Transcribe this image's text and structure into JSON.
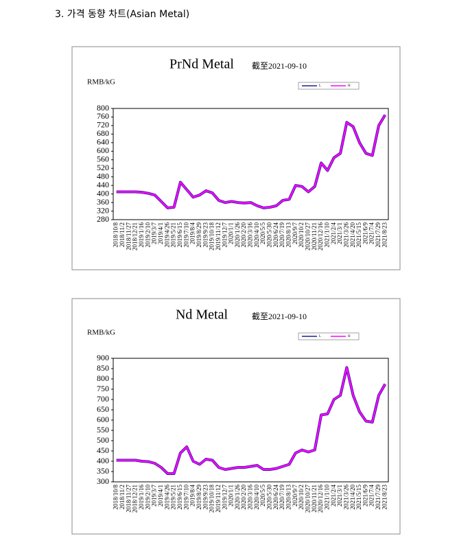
{
  "heading": "3. 가격 동향 차트(Asian Metal)",
  "chart_data": [
    {
      "type": "line",
      "title": "PrNd Metal",
      "subtitle": "截至2021-09-10",
      "y_label": "RMB/kG",
      "categories": [
        "2018/10/8",
        "2018/11/2",
        "2018/11/27",
        "2018/12/21",
        "2019/1/16",
        "2019/2/10",
        "2019/3/7",
        "2019/4/1",
        "2019/4/26",
        "2019/5/21",
        "2019/6/15",
        "2019/7/10",
        "2019/8/4",
        "2019/8/29",
        "2019/9/23",
        "2019/10/18",
        "2019/11/12",
        "2019/12/7",
        "2020/1/1",
        "2020/1/26",
        "2020/2/20",
        "2020/3/16",
        "2020/4/10",
        "2020/5/5",
        "2020/5/30",
        "2020/6/24",
        "2020/7/19",
        "2020/8/13",
        "2020/9/7",
        "2020/10/2",
        "2020/10/27",
        "2020/11/21",
        "2020/12/16",
        "2021/1/10",
        "2021/2/4",
        "2021/3/1",
        "2021/3/26",
        "2021/4/20",
        "2021/5/15",
        "2021/6/9",
        "2021/7/4",
        "2021/7/29",
        "2021/8/23"
      ],
      "series": [
        {
          "name": "L",
          "color": "#1f1f8f",
          "values": [
            410,
            410,
            410,
            410,
            408,
            403,
            395,
            365,
            335,
            338,
            455,
            420,
            385,
            395,
            415,
            405,
            370,
            360,
            365,
            360,
            358,
            360,
            345,
            335,
            338,
            345,
            370,
            375,
            440,
            435,
            410,
            435,
            545,
            510,
            570,
            590,
            735,
            715,
            640,
            590,
            580,
            720,
            770
          ]
        },
        {
          "name": "H",
          "color": "#ff00ff",
          "values": [
            410,
            410,
            410,
            410,
            408,
            403,
            395,
            365,
            335,
            338,
            455,
            420,
            385,
            395,
            415,
            405,
            370,
            360,
            365,
            360,
            358,
            360,
            345,
            335,
            338,
            345,
            370,
            375,
            440,
            435,
            410,
            435,
            545,
            510,
            570,
            590,
            735,
            715,
            640,
            590,
            580,
            720,
            770
          ]
        }
      ],
      "ylim": [
        280,
        800
      ],
      "yticks": [
        280,
        320,
        360,
        400,
        440,
        480,
        520,
        560,
        600,
        640,
        680,
        720,
        760,
        800
      ]
    },
    {
      "type": "line",
      "title": "Nd Metal",
      "subtitle": "截至2021-09-10",
      "y_label": "RMB/kG",
      "categories": [
        "2018/10/8",
        "2018/11/2",
        "2018/11/27",
        "2018/12/21",
        "2019/1/16",
        "2019/2/10",
        "2019/3/7",
        "2019/4/1",
        "2019/4/26",
        "2019/5/21",
        "2019/6/15",
        "2019/7/10",
        "2019/8/4",
        "2019/8/29",
        "2019/9/23",
        "2019/10/18",
        "2019/11/12",
        "2019/12/7",
        "2020/1/1",
        "2020/1/26",
        "2020/2/20",
        "2020/3/16",
        "2020/4/10",
        "2020/5/5",
        "2020/5/30",
        "2020/6/24",
        "2020/7/19",
        "2020/8/13",
        "2020/9/7",
        "2020/10/2",
        "2020/10/27",
        "2020/11/21",
        "2020/12/16",
        "2021/1/10",
        "2021/2/4",
        "2021/3/1",
        "2021/3/26",
        "2021/4/20",
        "2021/5/15",
        "2021/6/9",
        "2021/7/4",
        "2021/7/29",
        "2021/8/23"
      ],
      "series": [
        {
          "name": "L",
          "color": "#1f1f8f",
          "values": [
            405,
            405,
            405,
            405,
            400,
            398,
            390,
            370,
            340,
            340,
            440,
            470,
            400,
            385,
            410,
            405,
            370,
            360,
            365,
            370,
            370,
            375,
            380,
            360,
            360,
            365,
            375,
            385,
            440,
            455,
            445,
            455,
            625,
            630,
            700,
            720,
            855,
            720,
            640,
            595,
            590,
            720,
            775
          ]
        },
        {
          "name": "H",
          "color": "#ff00ff",
          "values": [
            405,
            405,
            405,
            405,
            400,
            398,
            390,
            370,
            340,
            340,
            440,
            470,
            400,
            385,
            410,
            405,
            370,
            360,
            365,
            370,
            370,
            375,
            380,
            360,
            360,
            365,
            375,
            385,
            440,
            455,
            445,
            455,
            625,
            630,
            700,
            720,
            855,
            720,
            640,
            595,
            590,
            720,
            775
          ]
        }
      ],
      "ylim": [
        300,
        900
      ],
      "yticks": [
        300,
        350,
        400,
        450,
        500,
        550,
        600,
        650,
        700,
        750,
        800,
        850,
        900
      ]
    }
  ]
}
